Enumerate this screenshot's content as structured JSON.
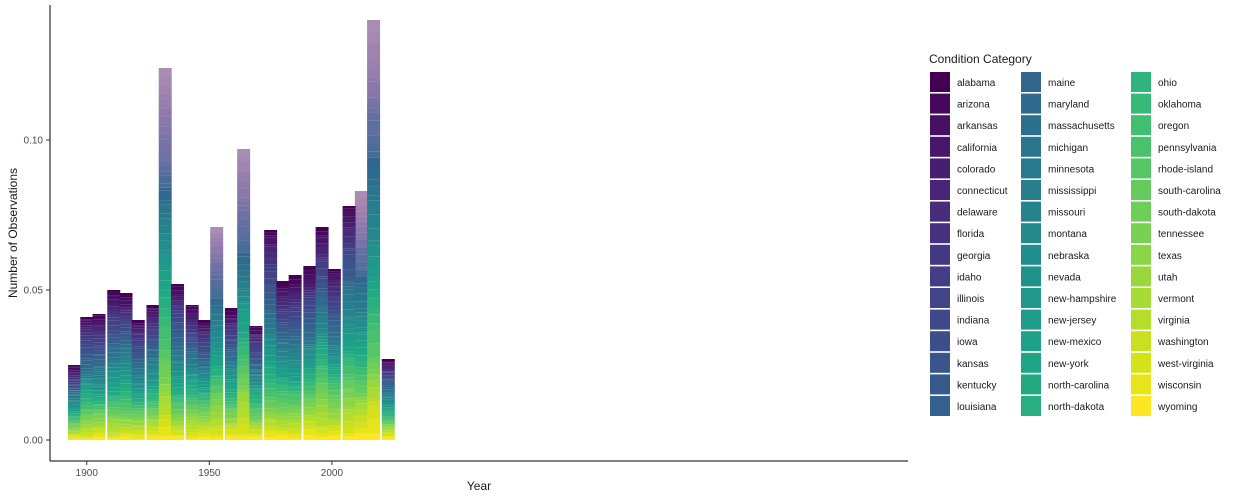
{
  "chart_data": {
    "type": "bar",
    "stacked": true,
    "xlabel": "Year",
    "ylabel": "Number of Observations",
    "legend_title": "Condition Category",
    "legend_position": "right",
    "grid": false,
    "xlim": [
      1885,
      2235
    ],
    "ylim": [
      -0.007,
      0.145
    ],
    "x_ticks": [
      1900,
      1950,
      2000
    ],
    "y_ticks": [
      0.0,
      0.05,
      0.1
    ],
    "y_tick_labels": [
      "0.00",
      "0.05",
      "0.10"
    ],
    "bin_width": 5.3,
    "bins": [
      1895,
      1900,
      1905,
      1911,
      1916,
      1921,
      1927,
      1932,
      1937,
      1943,
      1948,
      1953,
      1959,
      1964,
      1969,
      1975,
      1980,
      1985,
      1991,
      1996,
      2001,
      2007,
      2012,
      2017,
      2023
    ],
    "totals": [
      0.025,
      0.041,
      0.042,
      0.05,
      0.049,
      0.04,
      0.045,
      0.124,
      0.052,
      0.045,
      0.04,
      0.071,
      0.044,
      0.097,
      0.038,
      0.07,
      0.053,
      0.055,
      0.058,
      0.071,
      0.057,
      0.078,
      0.083,
      0.14,
      0.027
    ],
    "categories": [
      "alabama",
      "arizona",
      "arkansas",
      "california",
      "colorado",
      "connecticut",
      "delaware",
      "florida",
      "georgia",
      "idaho",
      "illinois",
      "indiana",
      "iowa",
      "kansas",
      "kentucky",
      "louisiana",
      "maine",
      "maryland",
      "massachusetts",
      "michigan",
      "minnesota",
      "mississippi",
      "missouri",
      "montana",
      "nebraska",
      "nevada",
      "new-hampshire",
      "new-jersey",
      "new-mexico",
      "new-york",
      "north-carolina",
      "north-dakota",
      "ohio",
      "oklahoma",
      "oregon",
      "pennsylvania",
      "rhode-island",
      "south-carolina",
      "south-dakota",
      "tennessee",
      "texas",
      "utah",
      "vermont",
      "virginia",
      "washington",
      "west-virginia",
      "wisconsin",
      "wyoming"
    ],
    "colors": [
      "#440154",
      "#46085c",
      "#471063",
      "#48176a",
      "#481f70",
      "#482576",
      "#472c7a",
      "#46327e",
      "#453882",
      "#433e85",
      "#414487",
      "#3e4989",
      "#3c4f8a",
      "#39558c",
      "#365a8c",
      "#34608d",
      "#31668e",
      "#2f6b8e",
      "#2d708e",
      "#2b758e",
      "#29798e",
      "#277f8e",
      "#25838e",
      "#24888d",
      "#228d8d",
      "#21918c",
      "#1f978b",
      "#1e9c89",
      "#1fa187",
      "#20a486",
      "#24aa83",
      "#28ae80",
      "#2fb47c",
      "#38b977",
      "#42be71",
      "#4ac16d",
      "#56c667",
      "#65cb5e",
      "#6ece58",
      "#7ad151",
      "#8bd646",
      "#98d83e",
      "#a8db34",
      "#b5de2b",
      "#c8e020",
      "#d5e21a",
      "#e7e419",
      "#fde725"
    ],
    "highlight_bins": [
      1932,
      1953,
      1964,
      2012,
      2017
    ]
  }
}
